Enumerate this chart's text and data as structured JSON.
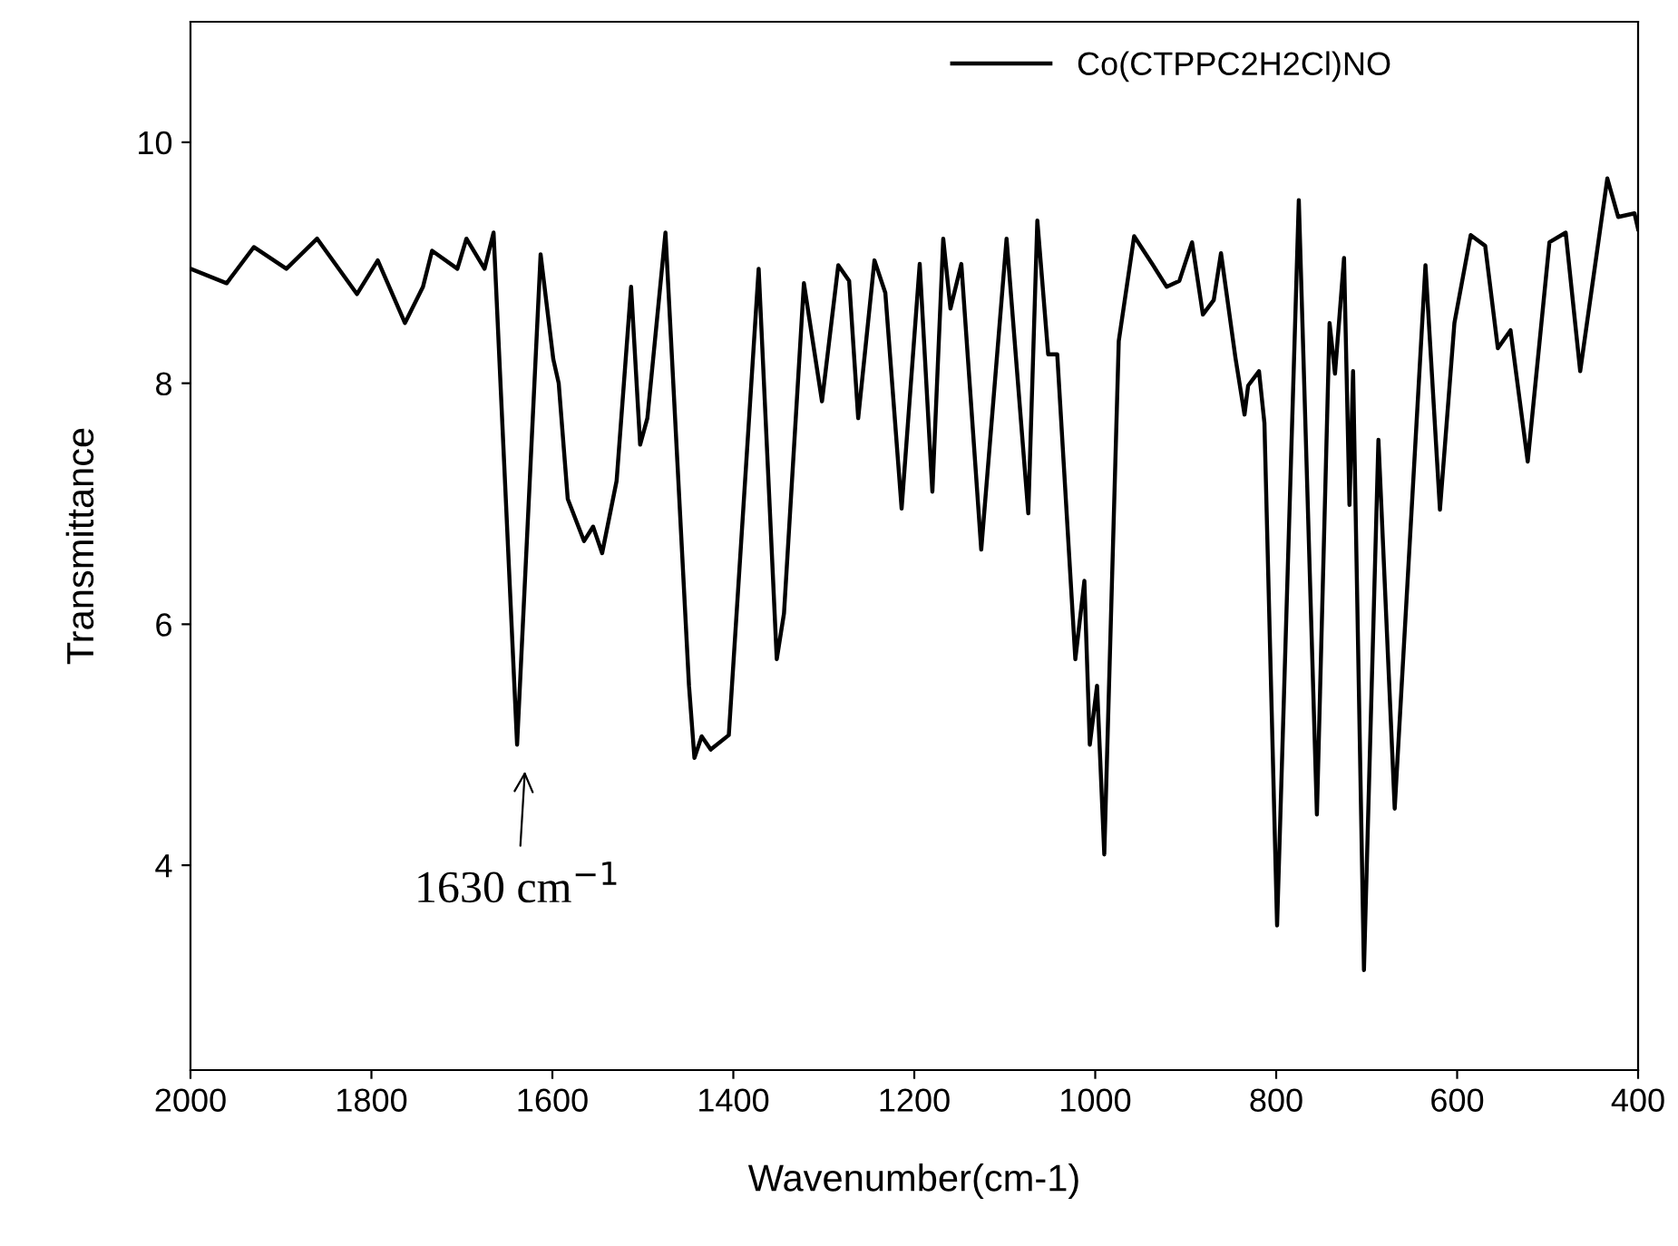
{
  "chart_data": {
    "type": "line",
    "xlabel": "Wavenumber(cm-1)",
    "ylabel": "Transmittance",
    "xlim": [
      2000,
      400
    ],
    "ylim": [
      2.3,
      11
    ],
    "xticks": [
      2000,
      1800,
      1600,
      1400,
      1200,
      1000,
      800,
      600,
      400
    ],
    "yticks": [
      4,
      6,
      8,
      10
    ],
    "grid": false,
    "legend": "top right",
    "marker": "none",
    "line_style": "solid",
    "x": [
      2000,
      1960,
      1930,
      1894,
      1860,
      1816,
      1793,
      1763,
      1743,
      1733,
      1705,
      1695,
      1675,
      1665,
      1639,
      1613,
      1599,
      1593,
      1583,
      1565,
      1555,
      1545,
      1529,
      1513,
      1503,
      1495,
      1475,
      1449,
      1443,
      1435,
      1425,
      1405,
      1372,
      1352,
      1344,
      1322,
      1302,
      1284,
      1272,
      1262,
      1244,
      1232,
      1214,
      1194,
      1180,
      1168,
      1160,
      1148,
      1126,
      1098,
      1074,
      1064,
      1052,
      1042,
      1022,
      1012,
      1006,
      998,
      990,
      974,
      957,
      937,
      921,
      907,
      893,
      881,
      869,
      861,
      845,
      835,
      831,
      819,
      813,
      799,
      775,
      755,
      741,
      735,
      725,
      719,
      715,
      703,
      687,
      669,
      635,
      619,
      603,
      585,
      569,
      555,
      541,
      522,
      498,
      480,
      464,
      434,
      422,
      404,
      400
    ],
    "series": [
      {
        "name": "Co(CTPPC2H2Cl)NO",
        "color": "#000000",
        "values": [
          8.95,
          8.83,
          9.13,
          8.95,
          9.2,
          8.74,
          9.02,
          8.5,
          8.8,
          9.1,
          8.95,
          9.2,
          8.95,
          9.25,
          5.0,
          9.07,
          8.2,
          8.0,
          7.04,
          6.69,
          6.81,
          6.59,
          7.19,
          8.8,
          7.49,
          7.71,
          9.25,
          5.49,
          4.89,
          5.07,
          4.96,
          5.08,
          8.95,
          5.71,
          6.09,
          8.83,
          7.85,
          8.98,
          8.85,
          7.71,
          9.02,
          8.75,
          6.96,
          8.99,
          7.1,
          9.2,
          8.62,
          8.99,
          6.62,
          9.2,
          6.92,
          9.35,
          8.24,
          8.24,
          5.71,
          6.36,
          5.0,
          5.49,
          4.09,
          8.35,
          9.22,
          8.99,
          8.8,
          8.85,
          9.17,
          8.57,
          8.69,
          9.08,
          8.21,
          7.74,
          7.98,
          8.1,
          7.67,
          3.5,
          9.52,
          4.42,
          8.5,
          8.08,
          9.04,
          6.99,
          8.1,
          3.13,
          7.53,
          4.47,
          8.98,
          6.95,
          8.5,
          9.23,
          9.14,
          8.29,
          8.44,
          7.35,
          9.17,
          9.25,
          8.1,
          9.7,
          9.38,
          9.41,
          9.28
        ]
      }
    ],
    "annotations": [
      "1630 cm$^{−1}$"
    ]
  }
}
